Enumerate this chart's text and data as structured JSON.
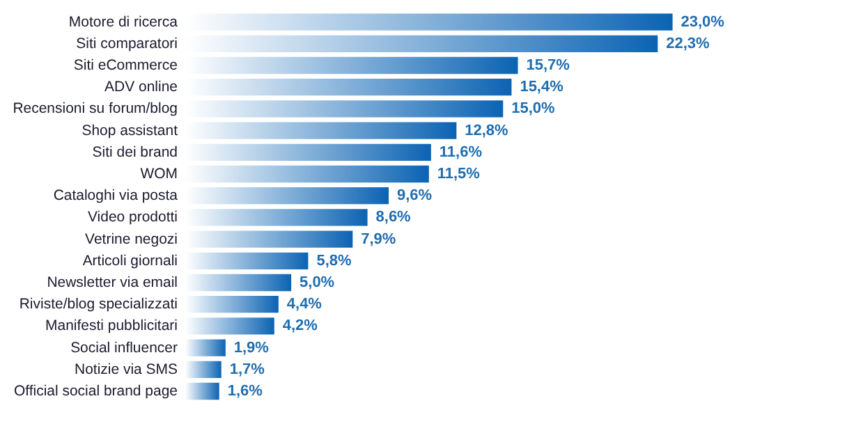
{
  "chart_data": {
    "type": "bar",
    "orientation": "horizontal",
    "categories": [
      "Motore di ricerca",
      "Siti comparatori",
      "Siti eCommerce",
      "ADV online",
      "Recensioni su forum/blog",
      "Shop assistant",
      "Siti dei brand",
      "WOM",
      "Cataloghi via posta",
      "Video prodotti",
      "Vetrine negozi",
      "Articoli giornali",
      "Newsletter via email",
      "Riviste/blog specializzati",
      "Manifesti pubblicitari",
      "Social influencer",
      "Notizie via SMS",
      "Official social brand page"
    ],
    "values": [
      23.0,
      22.3,
      15.7,
      15.4,
      15.0,
      12.8,
      11.6,
      11.5,
      9.6,
      8.6,
      7.9,
      5.8,
      5.0,
      4.4,
      4.2,
      1.9,
      1.7,
      1.6
    ],
    "value_labels": [
      "23,0%",
      "22,3%",
      "15,7%",
      "15,4%",
      "15,0%",
      "12,8%",
      "11,6%",
      "11,5%",
      "9,6%",
      "8,6%",
      "7,9%",
      "5,8%",
      "5,0%",
      "4,4%",
      "4,2%",
      "1,9%",
      "1,7%",
      "1,6%"
    ],
    "color": "#0b63b3"
  }
}
